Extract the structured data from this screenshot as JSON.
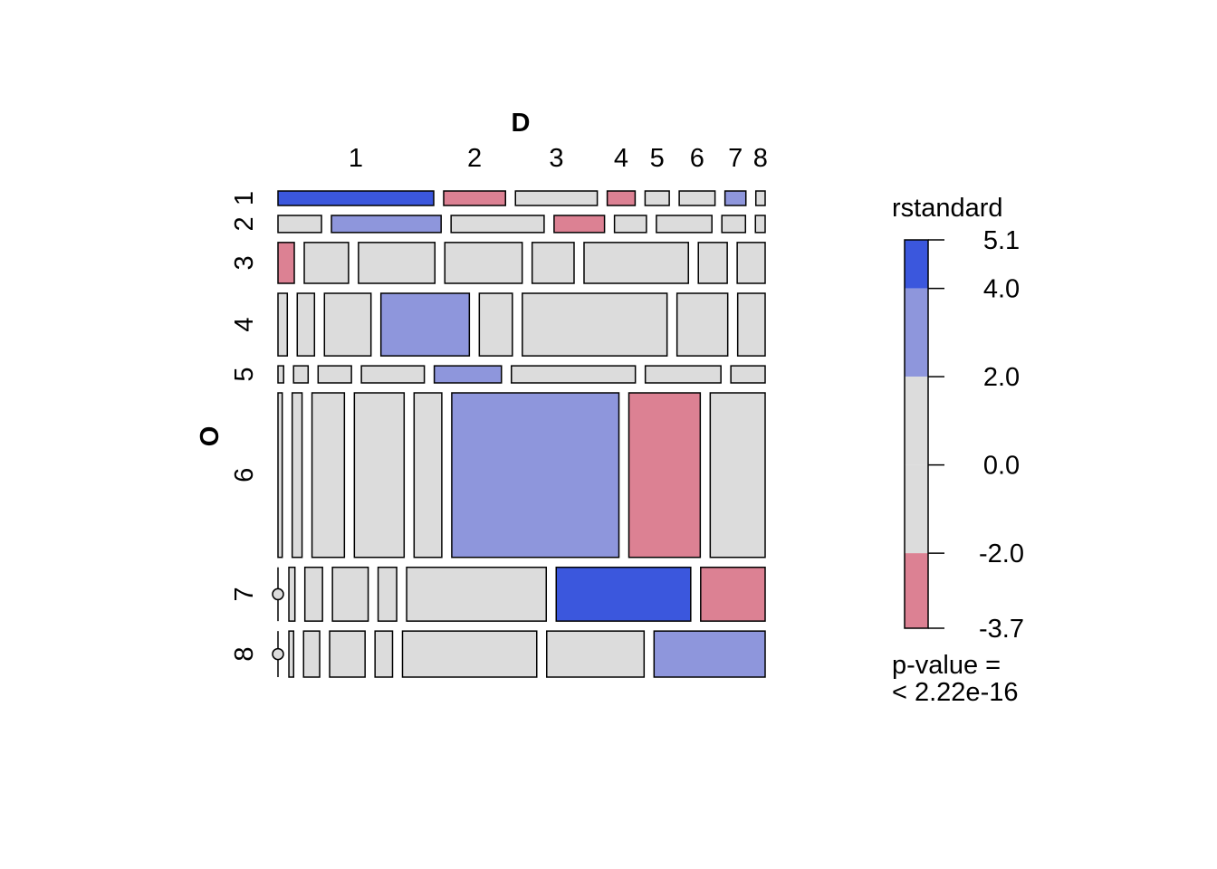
{
  "chart_data": {
    "type": "mosaic",
    "x_variable": "D",
    "y_variable": "O",
    "x_levels": [
      "1",
      "2",
      "3",
      "4",
      "5",
      "6",
      "7",
      "8"
    ],
    "y_levels": [
      "1",
      "2",
      "3",
      "4",
      "5",
      "6",
      "7",
      "8"
    ],
    "row_proportions": [
      0.028,
      0.033,
      0.079,
      0.121,
      0.033,
      0.318,
      0.104,
      0.089
    ],
    "cells": [
      [
        0.335,
        0.133,
        0.176,
        0.06,
        0.052,
        0.077,
        0.045,
        0.02
      ],
      [
        0.094,
        0.237,
        0.201,
        0.109,
        0.069,
        0.12,
        0.051,
        0.021
      ],
      [
        0.035,
        0.095,
        0.164,
        0.166,
        0.09,
        0.224,
        0.062,
        0.06
      ],
      [
        0.02,
        0.037,
        0.1,
        0.19,
        0.071,
        0.311,
        0.109,
        0.059
      ],
      [
        0.012,
        0.031,
        0.071,
        0.134,
        0.143,
        0.264,
        0.161,
        0.073
      ],
      [
        0.009,
        0.021,
        0.069,
        0.106,
        0.059,
        0.356,
        0.152,
        0.117
      ],
      [
        0.002,
        0.013,
        0.038,
        0.077,
        0.04,
        0.301,
        0.29,
        0.139
      ],
      [
        0.002,
        0.01,
        0.034,
        0.075,
        0.037,
        0.284,
        0.206,
        0.235
      ]
    ],
    "residual_classes": [
      [
        2,
        -1,
        0,
        -1,
        0,
        0,
        1,
        0
      ],
      [
        0,
        1,
        0,
        -1,
        0,
        0,
        0,
        0
      ],
      [
        -1,
        0,
        0,
        0,
        0,
        0,
        0,
        0
      ],
      [
        0,
        0,
        0,
        1,
        0,
        0,
        0,
        0
      ],
      [
        0,
        0,
        0,
        0,
        1,
        0,
        0,
        0
      ],
      [
        0,
        0,
        0,
        0,
        0,
        1,
        -1,
        0
      ],
      [
        0,
        0,
        0,
        0,
        0,
        0,
        2,
        -1
      ],
      [
        0,
        0,
        0,
        0,
        0,
        0,
        0,
        1
      ]
    ],
    "zero_cells": [
      [
        6,
        0
      ],
      [
        7,
        0
      ]
    ],
    "legend": {
      "title": "rstandard",
      "breaks": [
        5.1,
        4.0,
        2.0,
        0.0,
        -2.0,
        -3.7
      ],
      "break_labels": [
        "5.1",
        "4.0",
        "2.0",
        "0.0",
        "-2.0",
        "-3.7"
      ],
      "band_colors": [
        "#3b57dd",
        "#8e96dc",
        "#dcdcdc",
        "#dcdcdc",
        "#dc8193"
      ],
      "pvalue_line1": "p-value =",
      "pvalue_line2": "< 2.22e-16"
    },
    "colors": {
      "strong_positive": "#3b57dd",
      "positive": "#8e96dc",
      "neutral": "#dcdcdc",
      "negative": "#dc8193",
      "zero_cell_fill": "#dcdcdc"
    }
  }
}
